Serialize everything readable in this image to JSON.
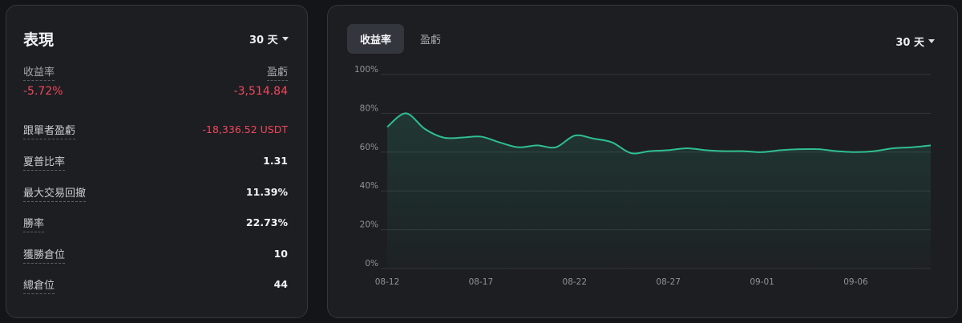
{
  "performance": {
    "title": "表現",
    "range": "30 天",
    "roi": {
      "label": "收益率",
      "value": "-5.72%"
    },
    "pnl": {
      "label": "盈虧",
      "value": "-3,514.84"
    },
    "stats": [
      {
        "label": "跟單者盈虧",
        "value": "-18,336.52 USDT",
        "negative": true
      },
      {
        "label": "夏普比率",
        "value": "1.31",
        "negative": false
      },
      {
        "label": "最大交易回撤",
        "value": "11.39%",
        "negative": false
      },
      {
        "label": "勝率",
        "value": "22.73%",
        "negative": false
      },
      {
        "label": "獲勝倉位",
        "value": "10",
        "negative": false
      },
      {
        "label": "總倉位",
        "value": "44",
        "negative": false
      }
    ]
  },
  "chart_panel": {
    "tabs": [
      {
        "label": "收益率",
        "active": true
      },
      {
        "label": "盈虧",
        "active": false
      }
    ],
    "range": "30 天"
  },
  "colors": {
    "line": "#2fbf8f",
    "negative": "#f0475c"
  },
  "chart_data": {
    "type": "area",
    "title": "",
    "xlabel": "",
    "ylabel": "",
    "x_tick_labels": [
      "08-12",
      "08-17",
      "08-22",
      "08-27",
      "09-01",
      "09-06"
    ],
    "y_tick_labels": [
      "100%",
      "80%",
      "60%",
      "40%",
      "20%",
      "0%"
    ],
    "ylim": [
      0,
      100
    ],
    "grid": true,
    "x": [
      "08-12",
      "08-13",
      "08-14",
      "08-15",
      "08-16",
      "08-17",
      "08-18",
      "08-19",
      "08-20",
      "08-21",
      "08-22",
      "08-23",
      "08-24",
      "08-25",
      "08-26",
      "08-27",
      "08-28",
      "08-29",
      "08-30",
      "08-31",
      "09-01",
      "09-02",
      "09-03",
      "09-04",
      "09-05",
      "09-06",
      "09-07",
      "09-08",
      "09-09",
      "09-10"
    ],
    "series": [
      {
        "values": [
          73,
          80,
          72,
          67.5,
          67.5,
          68,
          65,
          62.5,
          63.5,
          62.5,
          68.5,
          67,
          65,
          59.5,
          60.5,
          61,
          62,
          61,
          60.5,
          60.5,
          60,
          61,
          61.5,
          61.5,
          60.5,
          60,
          60.5,
          62,
          62.5,
          63.5
        ]
      }
    ]
  }
}
